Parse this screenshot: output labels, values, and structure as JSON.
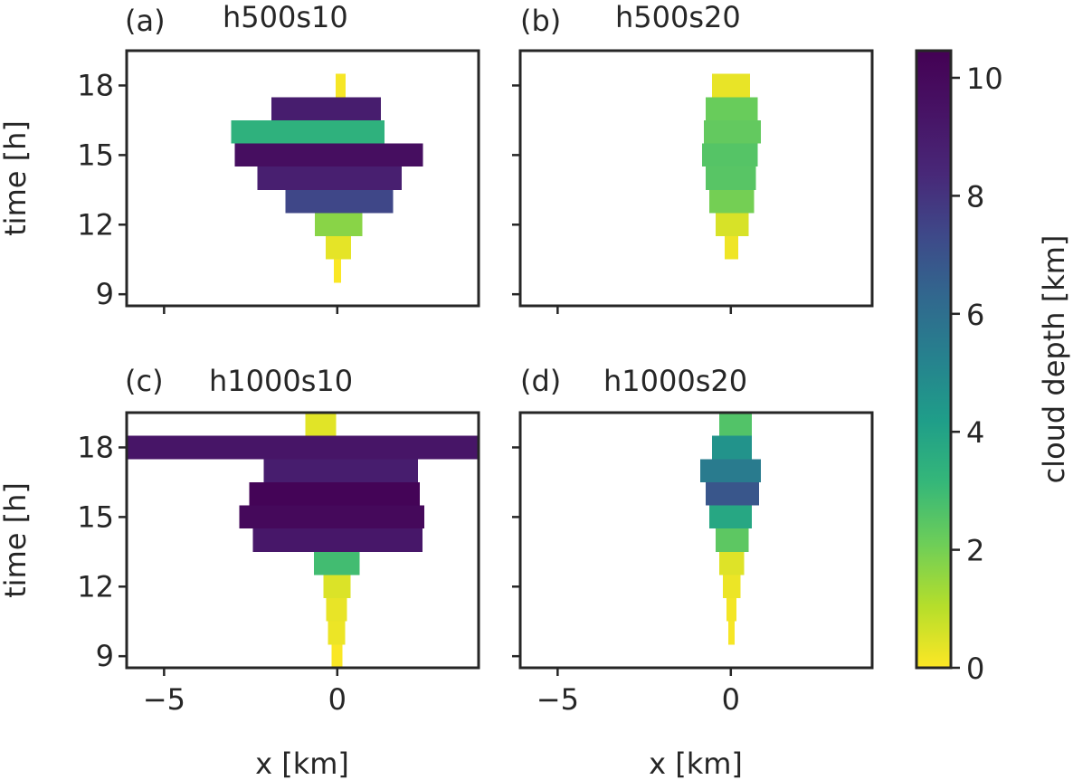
{
  "chart_data": {
    "type": "heatmap",
    "description": "Four panels showing horizontal cloud extent vs time, colored by cloud depth",
    "xlabel": "x [km]",
    "ylabel": "time [h]",
    "xlim": [
      -6.08,
      4.08
    ],
    "ylim": [
      8.5,
      19.5
    ],
    "xticks": [
      -5,
      0
    ],
    "xtick_labels": [
      "−5",
      "0"
    ],
    "yticks": [
      9,
      12,
      15,
      18
    ],
    "ytick_labels": [
      "9",
      "12",
      "15",
      "18"
    ],
    "row_height_h": 1,
    "colorbar": {
      "label": "cloud depth [km]",
      "colormap": "viridis_r",
      "range": [
        0,
        10.46
      ],
      "ticks": [
        0,
        2,
        4,
        6,
        8,
        10
      ],
      "tick_labels": [
        "0",
        "2",
        "4",
        "6",
        "8",
        "10"
      ]
    },
    "panels": [
      {
        "id": "a",
        "label": "(a)",
        "name": "h500s10",
        "bars": [
          {
            "t": 18,
            "x0": -0.05,
            "x1": 0.24,
            "depth": 0.1
          },
          {
            "t": 17,
            "x0": -1.9,
            "x1": 1.26,
            "depth": 8.9
          },
          {
            "t": 16,
            "x0": -3.06,
            "x1": 1.36,
            "depth": 3.4
          },
          {
            "t": 15,
            "x0": -2.96,
            "x1": 2.47,
            "depth": 9.7
          },
          {
            "t": 14,
            "x0": -2.3,
            "x1": 1.86,
            "depth": 8.8
          },
          {
            "t": 13,
            "x0": -1.49,
            "x1": 1.61,
            "depth": 7.4
          },
          {
            "t": 12,
            "x0": -0.65,
            "x1": 0.72,
            "depth": 1.7
          },
          {
            "t": 11,
            "x0": -0.33,
            "x1": 0.4,
            "depth": 0.35
          },
          {
            "t": 10,
            "x0": -0.1,
            "x1": 0.11,
            "depth": 0.05
          }
        ]
      },
      {
        "id": "b",
        "label": "(b)",
        "name": "h500s20",
        "bars": [
          {
            "t": 18,
            "x0": -0.54,
            "x1": 0.56,
            "depth": 0.3
          },
          {
            "t": 17,
            "x0": -0.72,
            "x1": 0.77,
            "depth": 2.2
          },
          {
            "t": 16,
            "x0": -0.78,
            "x1": 0.87,
            "depth": 2.3
          },
          {
            "t": 15,
            "x0": -0.83,
            "x1": 0.77,
            "depth": 2.55
          },
          {
            "t": 14,
            "x0": -0.72,
            "x1": 0.72,
            "depth": 2.5
          },
          {
            "t": 13,
            "x0": -0.62,
            "x1": 0.67,
            "depth": 2.0
          },
          {
            "t": 12,
            "x0": -0.44,
            "x1": 0.51,
            "depth": 0.55
          },
          {
            "t": 11,
            "x0": -0.18,
            "x1": 0.22,
            "depth": 0.2
          }
        ]
      },
      {
        "id": "c",
        "label": "(c)",
        "name": "h1000s10",
        "bars": [
          {
            "t": 19,
            "x0": -0.92,
            "x1": -0.03,
            "depth": 0.4
          },
          {
            "t": 18,
            "x0": -6.08,
            "x1": 4.08,
            "depth": 9.3
          },
          {
            "t": 17,
            "x0": -2.12,
            "x1": 2.33,
            "depth": 8.9
          },
          {
            "t": 16,
            "x0": -2.54,
            "x1": 2.38,
            "depth": 10.3
          },
          {
            "t": 15,
            "x0": -2.83,
            "x1": 2.51,
            "depth": 10.0
          },
          {
            "t": 14,
            "x0": -2.43,
            "x1": 2.46,
            "depth": 9.2
          },
          {
            "t": 13,
            "x0": -0.67,
            "x1": 0.64,
            "depth": 2.9
          },
          {
            "t": 12,
            "x0": -0.4,
            "x1": 0.38,
            "depth": 0.5
          },
          {
            "t": 11,
            "x0": -0.32,
            "x1": 0.28,
            "depth": 0.3
          },
          {
            "t": 10,
            "x0": -0.27,
            "x1": 0.23,
            "depth": 0.25
          },
          {
            "t": 9,
            "x0": -0.17,
            "x1": 0.15,
            "depth": 0.05
          }
        ]
      },
      {
        "id": "d",
        "label": "(d)",
        "name": "h1000s20",
        "bars": [
          {
            "t": 19,
            "x0": -0.33,
            "x1": 0.61,
            "depth": 2.6
          },
          {
            "t": 18,
            "x0": -0.54,
            "x1": 0.61,
            "depth": 4.6
          },
          {
            "t": 17,
            "x0": -0.88,
            "x1": 0.87,
            "depth": 5.5
          },
          {
            "t": 16,
            "x0": -0.72,
            "x1": 0.82,
            "depth": 6.9
          },
          {
            "t": 15,
            "x0": -0.62,
            "x1": 0.61,
            "depth": 3.8
          },
          {
            "t": 14,
            "x0": -0.44,
            "x1": 0.51,
            "depth": 2.4
          },
          {
            "t": 13,
            "x0": -0.33,
            "x1": 0.38,
            "depth": 0.45
          },
          {
            "t": 12,
            "x0": -0.23,
            "x1": 0.28,
            "depth": 0.25
          },
          {
            "t": 11,
            "x0": -0.13,
            "x1": 0.16,
            "depth": 0.15
          },
          {
            "t": 10,
            "x0": -0.07,
            "x1": 0.11,
            "depth": 0.1
          }
        ]
      }
    ]
  }
}
